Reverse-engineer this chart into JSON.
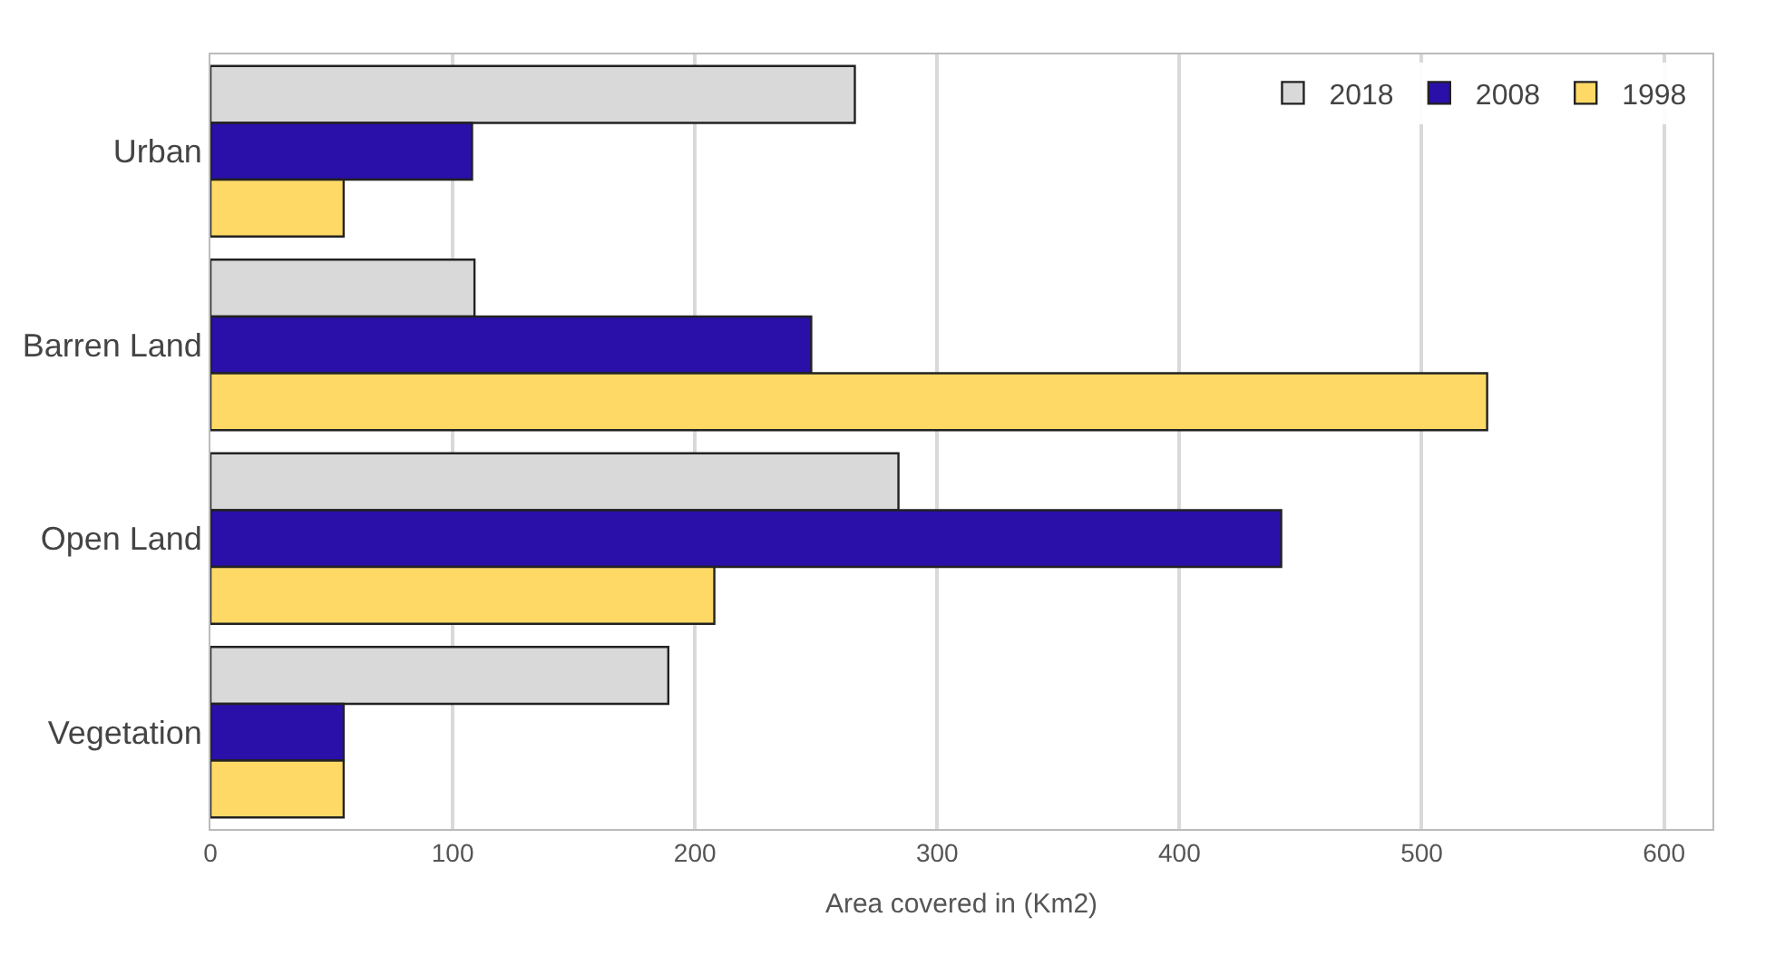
{
  "chart_data": {
    "type": "bar",
    "orientation": "horizontal",
    "xlabel": "Area covered in (Km2)",
    "categories": [
      "Urban",
      "Barren Land",
      "Open Land",
      "Vegetation"
    ],
    "series": [
      {
        "name": "2018",
        "color": "#d9d9d9",
        "values": [
          266,
          109,
          284,
          189
        ]
      },
      {
        "name": "2008",
        "color": "#2a0fa8",
        "values": [
          108,
          248,
          442,
          55
        ]
      },
      {
        "name": "1998",
        "color": "#ffd966",
        "values": [
          55,
          527,
          208,
          55
        ]
      }
    ],
    "xlim": [
      0,
      620
    ],
    "xticks": [
      0,
      100,
      200,
      300,
      400,
      500,
      600
    ],
    "grid": "x",
    "legend": "top right"
  }
}
